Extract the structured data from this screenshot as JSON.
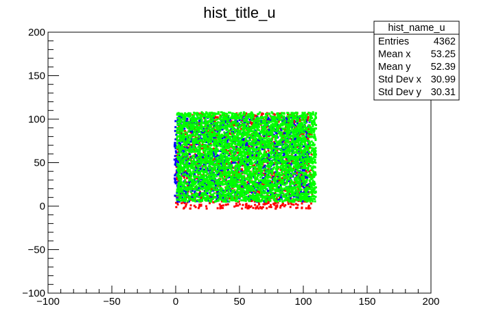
{
  "chart_data": {
    "type": "scatter",
    "title": "hist_title_u",
    "xlabel": "",
    "ylabel": "",
    "xlim": [
      -100,
      200
    ],
    "ylim": [
      -100,
      200
    ],
    "x_ticks": [
      -100,
      -50,
      0,
      50,
      100,
      150,
      200
    ],
    "y_ticks": [
      -100,
      -50,
      0,
      50,
      100,
      150,
      200
    ],
    "x_tick_labels": [
      "−100",
      "−50",
      "0",
      "50",
      "100",
      "150",
      "200"
    ],
    "y_tick_labels": [
      "−100",
      "−50",
      "0",
      "50",
      "100",
      "150",
      "200"
    ],
    "grid": false,
    "series": [
      {
        "color": "#ff0000",
        "x_range": [
          0,
          107
        ],
        "y_range": [
          -3,
          107
        ]
      },
      {
        "color": "#0000ff",
        "x_range": [
          -1,
          105
        ],
        "y_range": [
          5,
          103
        ]
      },
      {
        "color": "#00ff00",
        "x_range": [
          1,
          110
        ],
        "y_range": [
          5,
          108
        ]
      }
    ],
    "stats_box": {
      "name": "hist_name_u",
      "rows": [
        {
          "label": "Entries",
          "value": "4362"
        },
        {
          "label": "Mean x",
          "value": "53.25"
        },
        {
          "label": "Mean y",
          "value": "52.39"
        },
        {
          "label": "Std Dev x",
          "value": "30.99"
        },
        {
          "label": "Std Dev y",
          "value": "30.31"
        }
      ]
    }
  }
}
